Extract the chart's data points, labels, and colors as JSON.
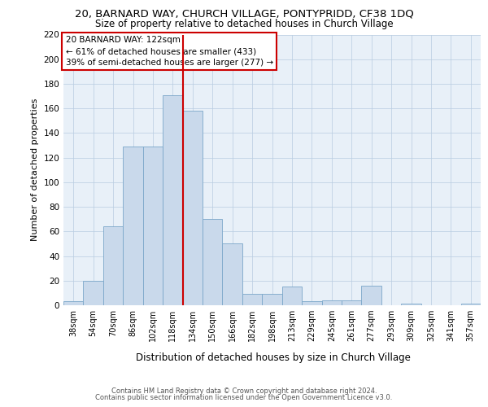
{
  "title": "20, BARNARD WAY, CHURCH VILLAGE, PONTYPRIDD, CF38 1DQ",
  "subtitle": "Size of property relative to detached houses in Church Village",
  "xlabel": "Distribution of detached houses by size in Church Village",
  "ylabel": "Number of detached properties",
  "categories": [
    "38sqm",
    "54sqm",
    "70sqm",
    "86sqm",
    "102sqm",
    "118sqm",
    "134sqm",
    "150sqm",
    "166sqm",
    "182sqm",
    "198sqm",
    "213sqm",
    "229sqm",
    "245sqm",
    "261sqm",
    "277sqm",
    "293sqm",
    "309sqm",
    "325sqm",
    "341sqm",
    "357sqm"
  ],
  "values": [
    3,
    20,
    64,
    129,
    129,
    171,
    158,
    70,
    50,
    9,
    9,
    15,
    3,
    4,
    4,
    16,
    0,
    1,
    0,
    0,
    1
  ],
  "bar_color": "#c9d9eb",
  "bar_edge_color": "#7ba7c9",
  "vline_color": "#cc0000",
  "vline_position": 5.5,
  "annotation_title": "20 BARNARD WAY: 122sqm",
  "annotation_line1": "← 61% of detached houses are smaller (433)",
  "annotation_line2": "39% of semi-detached houses are larger (277) →",
  "annotation_box_edge_color": "#cc0000",
  "ylim": [
    0,
    220
  ],
  "yticks": [
    0,
    20,
    40,
    60,
    80,
    100,
    120,
    140,
    160,
    180,
    200,
    220
  ],
  "bg_color": "#e8f0f8",
  "grid_color": "#b8cce0",
  "footer1": "Contains HM Land Registry data © Crown copyright and database right 2024.",
  "footer2": "Contains public sector information licensed under the Open Government Licence v3.0."
}
